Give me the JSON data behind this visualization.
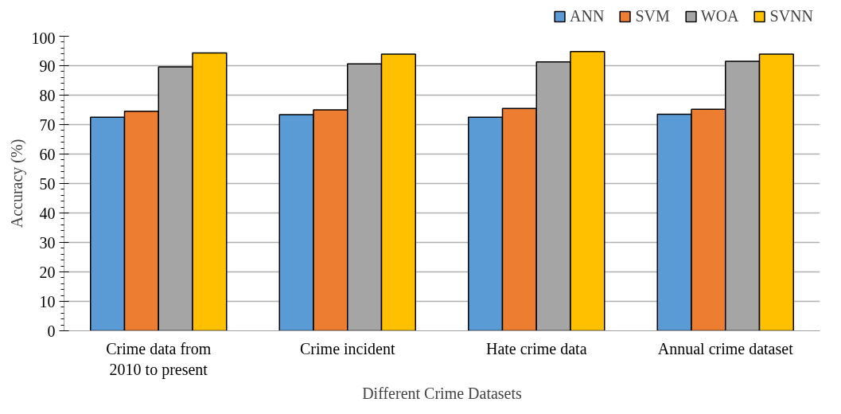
{
  "chart_data": {
    "type": "bar",
    "xlabel": "Different Crime Datasets",
    "ylabel": "Accuracy (%)",
    "categories": [
      "Crime data from\n2010 to present",
      "Crime incident",
      "Hate crime data",
      "Annual crime dataset"
    ],
    "series": [
      {
        "name": "ANN",
        "color": "#5b9bd5",
        "values": [
          72.5,
          73.4,
          72.5,
          73.5
        ]
      },
      {
        "name": "SVM",
        "color": "#ed7d31",
        "values": [
          74.5,
          75.0,
          75.5,
          75.2
        ]
      },
      {
        "name": "WOA",
        "color": "#a5a5a5",
        "values": [
          89.6,
          90.6,
          91.3,
          91.5
        ]
      },
      {
        "name": "SVNN",
        "color": "#ffc000",
        "values": [
          94.3,
          93.9,
          94.8,
          93.9
        ]
      }
    ],
    "ylim": [
      0,
      100
    ],
    "yticks": [
      0,
      10,
      20,
      30,
      40,
      50,
      60,
      70,
      80,
      90,
      100
    ],
    "grid": "y",
    "legend": "top right"
  }
}
